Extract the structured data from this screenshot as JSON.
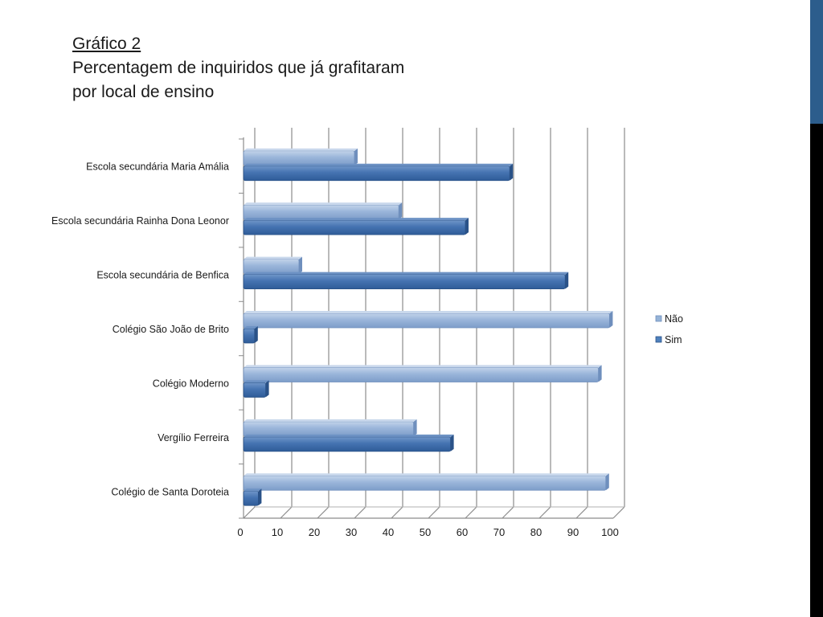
{
  "slide": {
    "graphic_label": "Gráfico 2",
    "title_line1": "Percentagem de inquiridos que já grafitaram",
    "title_line2": "por local de ensino",
    "accent_color": "#2c5d8c"
  },
  "chart_data": {
    "type": "bar",
    "orientation": "horizontal",
    "title": "",
    "xlabel": "",
    "ylabel": "",
    "xlim": [
      0,
      100
    ],
    "x_ticks": [
      "0",
      "10",
      "20",
      "30",
      "40",
      "50",
      "60",
      "70",
      "80",
      "90",
      "100"
    ],
    "categories": [
      "Escola secundária Maria Amália",
      "Escola secundária Rainha Dona Leonor",
      "Escola secundária de Benfica",
      "Colégio São João de Brito",
      "Colégio Moderno",
      "Vergílio Ferreira",
      "Colégio de Santa Doroteia"
    ],
    "series": [
      {
        "name": "Não",
        "color": "#95b3d7",
        "values": [
          30,
          42,
          15,
          99,
          96,
          46,
          98
        ]
      },
      {
        "name": "Sim",
        "color": "#4f81bd",
        "values": [
          72,
          60,
          87,
          3,
          6,
          56,
          4
        ]
      }
    ],
    "legend_position": "right",
    "grid": true
  }
}
